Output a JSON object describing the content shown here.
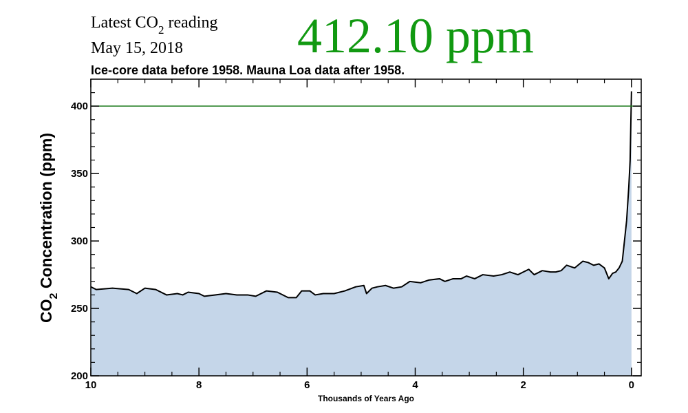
{
  "chart_data": {
    "type": "area",
    "reading_label": [
      "Latest CO",
      "2",
      " reading"
    ],
    "date": "May 15, 2018",
    "latest_reading": "412.10 ppm",
    "latest_color": "#119911",
    "title": "Ice-core data before 1958. Mauna Loa data after 1958.",
    "y_label": [
      "CO",
      "2",
      " Concentration (ppm)"
    ],
    "x_label": "Thousands of Years Ago",
    "x": [
      10,
      9.9,
      9.6,
      9.3,
      9.15,
      9.0,
      8.8,
      8.6,
      8.4,
      8.3,
      8.2,
      8.0,
      7.9,
      7.7,
      7.5,
      7.3,
      7.1,
      6.95,
      6.75,
      6.55,
      6.35,
      6.2,
      6.1,
      5.95,
      5.85,
      5.7,
      5.5,
      5.3,
      5.1,
      4.95,
      4.9,
      4.8,
      4.7,
      4.55,
      4.4,
      4.25,
      4.1,
      3.9,
      3.75,
      3.55,
      3.45,
      3.3,
      3.15,
      3.05,
      2.9,
      2.75,
      2.55,
      2.4,
      2.25,
      2.1,
      2.0,
      1.9,
      1.8,
      1.65,
      1.5,
      1.4,
      1.3,
      1.2,
      1.05,
      0.9,
      0.8,
      0.7,
      0.6,
      0.5,
      0.42,
      0.35,
      0.29,
      0.23,
      0.17,
      0.13,
      0.09,
      0.05,
      0.025,
      0.013,
      0
    ],
    "series": [
      {
        "color": "#000000",
        "fill": "#c5d6e9",
        "values": [
          266,
          264,
          265,
          264,
          261,
          265,
          264,
          260,
          261,
          260,
          262,
          261,
          259,
          260,
          261,
          260,
          260,
          259,
          263,
          262,
          258,
          258,
          263,
          263,
          260,
          261,
          261,
          263,
          266,
          267,
          261,
          265,
          266,
          267,
          265,
          266,
          270,
          269,
          271,
          272,
          270,
          272,
          272,
          274,
          272,
          275,
          274,
          275,
          277,
          275,
          277,
          279,
          275,
          278,
          277,
          277,
          278,
          282,
          280,
          285,
          284,
          282,
          283,
          280,
          272,
          276,
          277,
          280,
          285,
          300,
          315,
          340,
          360,
          385,
          411
        ]
      }
    ],
    "reference_line": {
      "value": 400,
      "color": "#1a7a1a"
    },
    "xlim": [
      10,
      -0.18
    ],
    "ylim": [
      200,
      420
    ],
    "xticks": [
      10,
      8,
      6,
      4,
      2,
      0
    ],
    "yticks": [
      200,
      250,
      300,
      350,
      400
    ],
    "xminorticks": [
      9.5,
      9,
      8.5,
      7.5,
      7,
      6.5,
      5.5,
      5,
      4.5,
      3.5,
      3,
      2.5,
      1.5,
      1,
      0.5
    ],
    "yminorticks": [
      210,
      220,
      230,
      240,
      260,
      270,
      280,
      290,
      310,
      320,
      330,
      340,
      360,
      370,
      380,
      390,
      410
    ]
  }
}
